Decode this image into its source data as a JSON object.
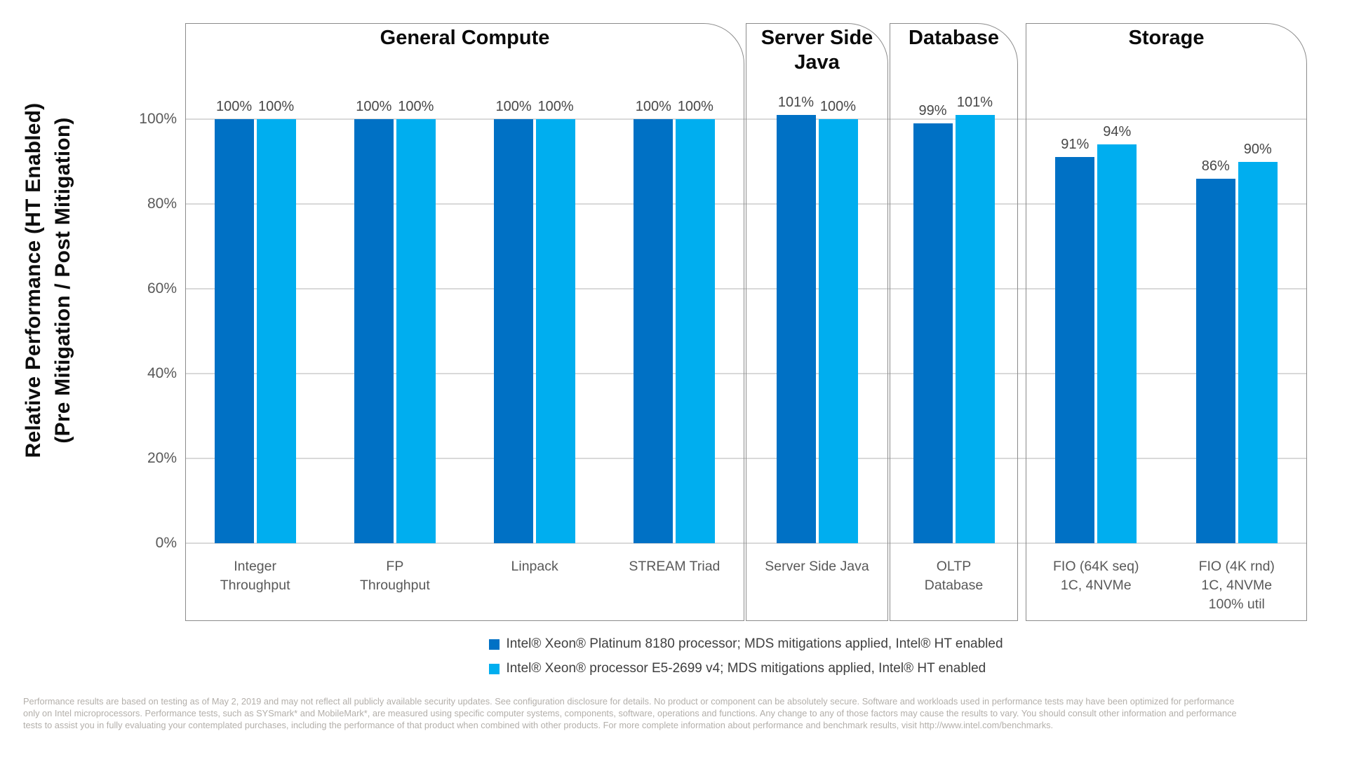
{
  "chart_data": {
    "type": "bar",
    "title": "",
    "ylabel_line1": "Relative Performance (HT Enabled)",
    "ylabel_line2": "(Pre Mitigation / Post Mitigation)",
    "ylim": [
      0,
      100
    ],
    "grid": true,
    "yticks": [
      {
        "label": "100%",
        "value": 100
      },
      {
        "label": "80%",
        "value": 80
      },
      {
        "label": "60%",
        "value": 60
      },
      {
        "label": "40%",
        "value": 40
      },
      {
        "label": "20%",
        "value": 20
      },
      {
        "label": "0%",
        "value": 0
      }
    ],
    "groups": [
      {
        "label": "General Compute",
        "categories": [
          {
            "id": "integer-throughput",
            "lines": [
              "Integer",
              "Throughput"
            ]
          },
          {
            "id": "fp-throughput",
            "lines": [
              "FP",
              "Throughput"
            ]
          },
          {
            "id": "linpack",
            "lines": [
              "Linpack"
            ]
          },
          {
            "id": "stream-triad",
            "lines": [
              "STREAM Triad"
            ]
          }
        ]
      },
      {
        "label": "Server Side Java",
        "categories": [
          {
            "id": "server-side-java",
            "lines": [
              "Server Side Java"
            ]
          }
        ]
      },
      {
        "label": "Database",
        "categories": [
          {
            "id": "oltp-database",
            "lines": [
              "OLTP",
              "Database"
            ]
          }
        ]
      },
      {
        "label": "Storage",
        "categories": [
          {
            "id": "fio-64k-seq",
            "lines": [
              "FIO (64K seq)",
              "1C, 4NVMe"
            ]
          },
          {
            "id": "fio-4k-rnd",
            "lines": [
              "FIO (4K rnd)",
              "1C, 4NVMe",
              "100% util"
            ]
          }
        ]
      }
    ],
    "series": [
      {
        "name": "Intel® Xeon® Platinum 8180 processor; MDS mitigations applied, Intel® HT enabled",
        "color": "#0071C5",
        "values": [
          100,
          100,
          100,
          100,
          101,
          99,
          91,
          86
        ]
      },
      {
        "name": "Intel® Xeon® processor E5-2699 v4; MDS mitigations applied, Intel® HT enabled",
        "color": "#00AEEF",
        "values": [
          100,
          100,
          100,
          100,
          100,
          101,
          94,
          90
        ]
      }
    ],
    "value_label_suffix": "%",
    "legend_position": "bottom-center"
  },
  "footnote": {
    "lines": [
      "Performance results are based on testing as of May 2, 2019 and may not reflect all publicly available security updates. See configuration disclosure for details. No product or component can be absolutely secure. Software and workloads used in performance tests may have been optimized for performance",
      "only on Intel microprocessors. Performance tests, such as SYSmark* and MobileMark*, are measured using specific computer systems, components, software, operations and functions.  Any change to any of those factors may cause the results to vary.  You should consult other information and performance",
      "tests to assist you in fully evaluating your contemplated purchases, including the performance of that product when combined with other products. For more complete information about performance and benchmark results, visit http://www.intel.com/benchmarks."
    ]
  }
}
